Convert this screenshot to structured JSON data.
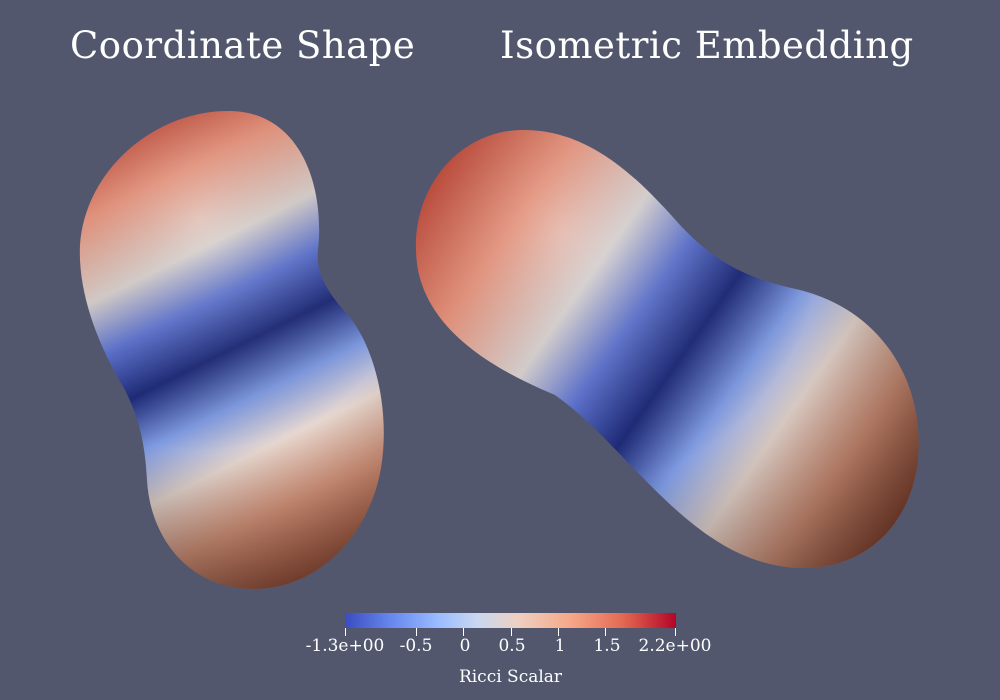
{
  "titles": {
    "left": "Coordinate Shape",
    "right": "Isometric Embedding"
  },
  "colorbar": {
    "title": "Ricci Scalar",
    "min_label": "-1.3e+00",
    "max_label": "2.2e+00",
    "tick_labels": [
      "-0.5",
      "0",
      "0.5",
      "1",
      "1.5"
    ],
    "colormap": "coolwarm",
    "colors": [
      "#3b4cc0",
      "#6788ee",
      "#9abbff",
      "#c9d7f0",
      "#edd1c2",
      "#f7a889",
      "#e26952",
      "#b40426"
    ]
  },
  "background_color": "#52576e"
}
